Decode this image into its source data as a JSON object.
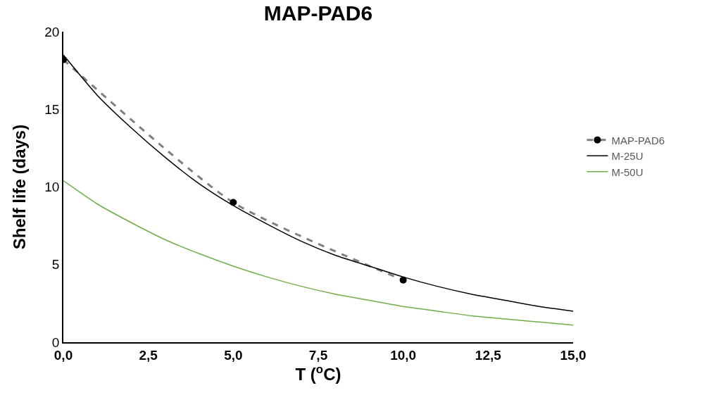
{
  "chart_data": {
    "type": "line",
    "title": "MAP-PAD6",
    "xlabel": "T ($^{o}$C)",
    "ylabel": "Shelf life (days)",
    "xlim": [
      0,
      15
    ],
    "ylim": [
      0,
      20
    ],
    "xticks": [
      {
        "value": 0,
        "label": "0,0"
      },
      {
        "value": 2.5,
        "label": "2,5"
      },
      {
        "value": 5,
        "label": "5,0"
      },
      {
        "value": 7.5,
        "label": "7,5"
      },
      {
        "value": 10,
        "label": "10,0"
      },
      {
        "value": 12.5,
        "label": "12,5"
      },
      {
        "value": 15,
        "label": "15,0"
      }
    ],
    "yticks": [
      0,
      5,
      10,
      15,
      20
    ],
    "grid": false,
    "legend": "right",
    "series": [
      {
        "name": "MAP-PAD6",
        "color": "#808080",
        "line_style": "dashed",
        "marker": "circle",
        "x": [
          0,
          5,
          10
        ],
        "values": [
          18.2,
          9.0,
          4.0
        ]
      },
      {
        "name": "M-25U",
        "color": "#000000",
        "line_style": "solid",
        "marker": "none",
        "x": [
          0,
          1,
          2,
          3,
          4,
          5,
          6,
          7,
          8,
          9,
          10,
          11,
          12,
          13,
          14,
          15
        ],
        "values": [
          18.5,
          15.9,
          13.8,
          11.9,
          10.2,
          8.8,
          7.6,
          6.5,
          5.6,
          4.9,
          4.2,
          3.6,
          3.1,
          2.7,
          2.3,
          2.0
        ]
      },
      {
        "name": "M-50U",
        "color": "#70ad47",
        "line_style": "solid",
        "marker": "none",
        "x": [
          0,
          1,
          2,
          3,
          4,
          5,
          6,
          7,
          8,
          9,
          10,
          11,
          12,
          13,
          14,
          15
        ],
        "values": [
          10.4,
          8.9,
          7.7,
          6.6,
          5.7,
          4.9,
          4.2,
          3.6,
          3.1,
          2.7,
          2.3,
          2.0,
          1.7,
          1.5,
          1.3,
          1.1
        ]
      }
    ]
  }
}
